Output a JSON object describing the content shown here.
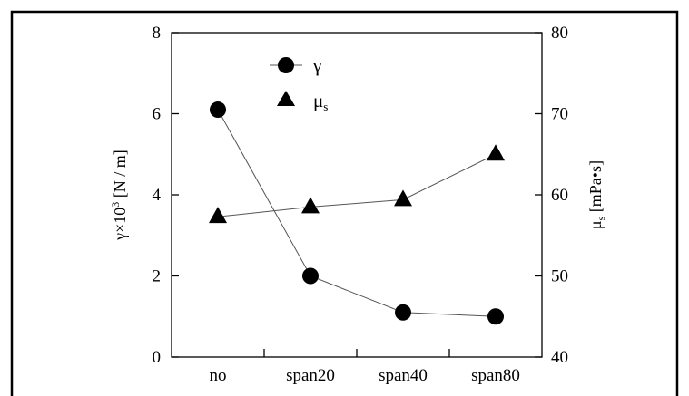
{
  "chart_data": {
    "type": "line",
    "categories": [
      "no",
      "span20",
      "span40",
      "span80"
    ],
    "series": [
      {
        "name": "γ",
        "axis": "left",
        "marker": "circle",
        "values": [
          6.1,
          2.0,
          1.1,
          1.0
        ]
      },
      {
        "name": "μs",
        "axis": "right",
        "marker": "triangle",
        "values": [
          57.3,
          58.5,
          59.4,
          65.0
        ]
      }
    ],
    "y_left": {
      "label_parts": [
        "γ",
        "×",
        "10",
        "3",
        " [N / m]"
      ],
      "ylim": [
        0,
        8
      ],
      "ticks": [
        "0",
        "2",
        "4",
        "6",
        "8"
      ]
    },
    "y_right": {
      "label_parts": [
        "μ",
        "s",
        " [mPa",
        "•",
        "s]"
      ],
      "ylim": [
        40,
        80
      ],
      "ticks": [
        "40",
        "50",
        "60",
        "70",
        "80"
      ]
    },
    "legend": {
      "placement": "top-left",
      "entries": [
        {
          "base": "γ",
          "sub": ""
        },
        {
          "base": "μ",
          "sub": "s"
        }
      ]
    },
    "colors": {
      "line": "#555555",
      "marker": "#000000"
    },
    "grid": false
  }
}
